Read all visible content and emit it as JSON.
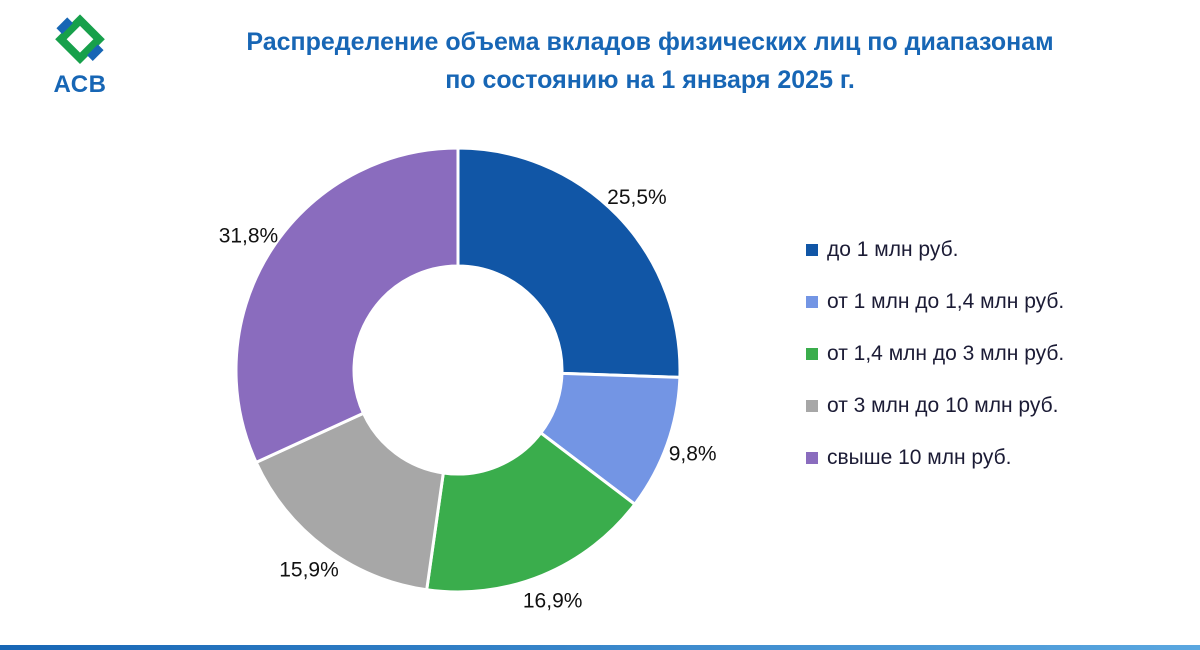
{
  "logo": {
    "text": "АСВ"
  },
  "title": {
    "line1": "Распределение объема вкладов физических лиц по диапазонам",
    "line2": "по состоянию на 1 января 2025 г."
  },
  "chart_data": {
    "type": "pie",
    "donut": true,
    "start_angle_deg": 0,
    "direction": "clockwise",
    "title": "Распределение объема вкладов физических лиц по диапазонам по состоянию на 1 января 2025 г.",
    "categories": [
      "до 1 млн руб.",
      "от 1 млн до 1,4 млн руб.",
      "от 1,4 млн до 3 млн руб.",
      "от 3 млн до 10 млн руб.",
      "свыше 10 млн руб."
    ],
    "values": [
      25.5,
      9.8,
      16.9,
      15.9,
      31.8
    ],
    "labels": [
      "25,5%",
      "9,8%",
      "16,9%",
      "15,9%",
      "31,8%"
    ],
    "colors": [
      "#1156a6",
      "#7395e4",
      "#3aad4c",
      "#a7a7a7",
      "#8a6cbe"
    ],
    "legend_position": "right"
  },
  "accent": {
    "title_color": "#1766b5",
    "bottom_bar_gradient": [
      "#1766b5",
      "#5aa7e0"
    ]
  }
}
